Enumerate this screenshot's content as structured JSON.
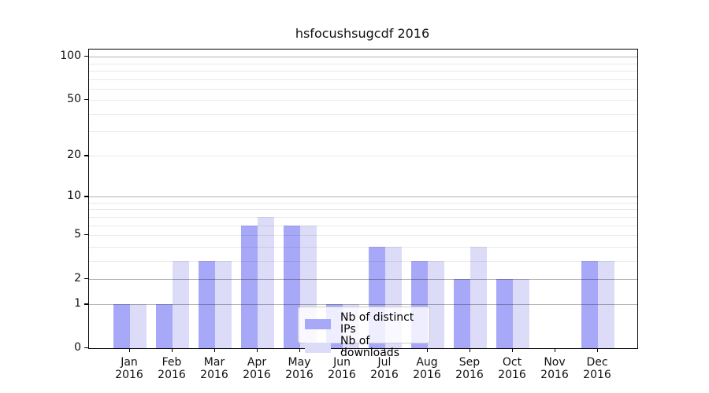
{
  "figure": {
    "background": "#ffffff"
  },
  "chart_data": {
    "type": "bar",
    "title": "hsfocushsugcdf 2016",
    "categories": [
      "Jan",
      "Feb",
      "Mar",
      "Apr",
      "May",
      "Jun",
      "Jul",
      "Aug",
      "Sep",
      "Oct",
      "Nov",
      "Dec"
    ],
    "year_label": "2016",
    "series": [
      {
        "name": "Nb of distinct IPs",
        "color": "#a8a8f8",
        "values": [
          1,
          1,
          3,
          6,
          6,
          1,
          4,
          3,
          2,
          2,
          0,
          3
        ]
      },
      {
        "name": "Nb of downloads",
        "color": "#dcdcf8",
        "values": [
          1,
          3,
          3,
          7,
          6,
          1,
          4,
          3,
          4,
          2,
          0,
          3
        ]
      }
    ],
    "xlabel": "",
    "ylabel": "",
    "yscale": "log1p",
    "ylim": [
      0,
      113
    ],
    "yticks": [
      0,
      1,
      2,
      5,
      10,
      20,
      50,
      100
    ],
    "grid": "on",
    "grid_major_values": [
      1,
      2,
      10,
      100
    ],
    "grid_minor_values": [
      3,
      4,
      5,
      6,
      7,
      8,
      9,
      20,
      30,
      40,
      50,
      60,
      70,
      80,
      90
    ],
    "legend_position": "lower center"
  }
}
